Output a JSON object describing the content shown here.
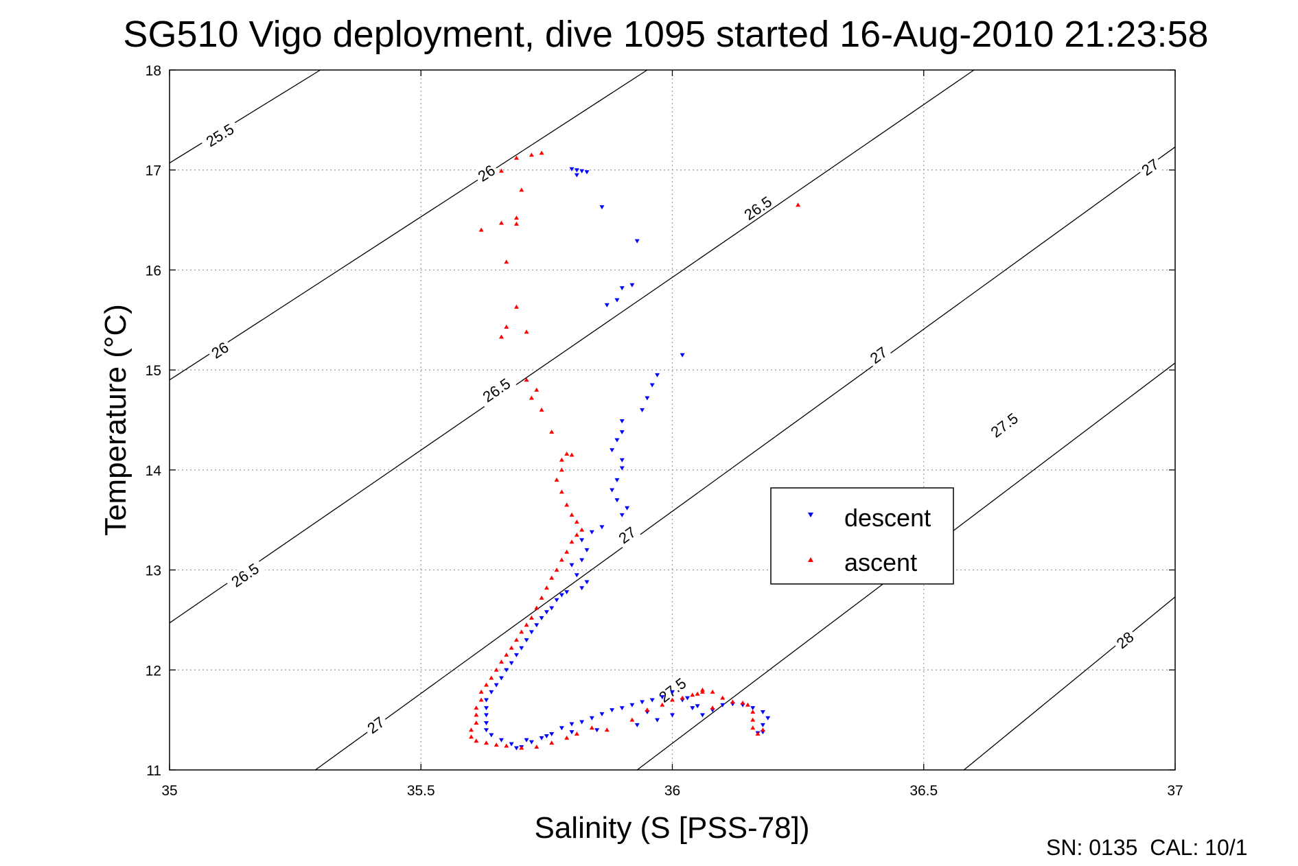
{
  "chart_data": {
    "type": "scatter",
    "title": "SG510 Vigo deployment, dive 1095 started 16-Aug-2010 21:23:58",
    "xlabel": "Salinity (S [PSS-78])",
    "ylabel": "Temperature (°C)",
    "xlim": [
      35,
      37
    ],
    "ylim": [
      11,
      18
    ],
    "xticks": [
      "35",
      "35.5",
      "36",
      "36.5",
      "37"
    ],
    "yticks": [
      "11",
      "12",
      "13",
      "14",
      "15",
      "16",
      "17",
      "18"
    ],
    "grid": true,
    "legend_position": "right-center",
    "footer": "SN: 0135  CAL: 10/1",
    "contours": [
      {
        "label": "25.5",
        "line": [
          [
            35.0,
            17.07
          ],
          [
            35.3,
            18.0
          ]
        ],
        "label_points": [
          [
            35.1,
            17.35
          ]
        ]
      },
      {
        "label": "26",
        "line": [
          [
            35.0,
            14.9
          ],
          [
            35.95,
            18.0
          ]
        ],
        "label_points": [
          [
            35.1,
            15.2
          ],
          [
            35.63,
            16.97
          ]
        ]
      },
      {
        "label": "26.5",
        "line": [
          [
            35.0,
            12.47
          ],
          [
            36.6,
            18.0
          ]
        ],
        "label_points": [
          [
            35.15,
            12.95
          ],
          [
            35.65,
            14.8
          ],
          [
            36.17,
            16.62
          ]
        ]
      },
      {
        "label": "27",
        "line": [
          [
            35.29,
            11.0
          ],
          [
            37.0,
            17.23
          ]
        ],
        "label_points": [
          [
            35.41,
            11.45
          ],
          [
            35.91,
            13.35
          ],
          [
            36.41,
            15.15
          ],
          [
            36.95,
            17.03
          ]
        ]
      },
      {
        "label": "27.5",
        "line": [
          [
            35.93,
            11.0
          ],
          [
            37.0,
            15.07
          ]
        ],
        "label_points": [
          [
            36.0,
            11.8
          ],
          [
            36.66,
            14.45
          ]
        ]
      },
      {
        "label": "28",
        "line": [
          [
            36.58,
            11.0
          ],
          [
            37.0,
            12.73
          ]
        ],
        "label_points": [
          [
            36.9,
            12.3
          ]
        ]
      }
    ],
    "series": [
      {
        "name": "descent",
        "color": "#0000ff",
        "marker": "triangle-down",
        "points": [
          [
            35.8,
            17.01
          ],
          [
            35.81,
            17.0
          ],
          [
            35.82,
            16.99
          ],
          [
            35.83,
            16.98
          ],
          [
            35.81,
            16.95
          ],
          [
            35.86,
            16.63
          ],
          [
            35.93,
            16.29
          ],
          [
            35.92,
            15.85
          ],
          [
            35.9,
            15.82
          ],
          [
            35.89,
            15.7
          ],
          [
            35.87,
            15.65
          ],
          [
            36.02,
            15.15
          ],
          [
            35.97,
            14.95
          ],
          [
            35.96,
            14.85
          ],
          [
            35.95,
            14.72
          ],
          [
            35.94,
            14.6
          ],
          [
            35.9,
            14.49
          ],
          [
            35.9,
            14.38
          ],
          [
            35.89,
            14.3
          ],
          [
            35.88,
            14.2
          ],
          [
            35.9,
            14.1
          ],
          [
            35.9,
            14.02
          ],
          [
            35.89,
            13.9
          ],
          [
            35.88,
            13.8
          ],
          [
            35.89,
            13.7
          ],
          [
            35.91,
            13.62
          ],
          [
            35.9,
            13.55
          ],
          [
            35.86,
            13.43
          ],
          [
            35.84,
            13.38
          ],
          [
            35.82,
            13.3
          ],
          [
            35.83,
            13.2
          ],
          [
            35.82,
            13.1
          ],
          [
            35.8,
            13.05
          ],
          [
            35.81,
            12.95
          ],
          [
            35.83,
            12.88
          ],
          [
            35.82,
            12.82
          ],
          [
            35.79,
            12.78
          ],
          [
            35.78,
            12.75
          ],
          [
            35.77,
            12.7
          ],
          [
            35.76,
            12.62
          ],
          [
            35.75,
            12.58
          ],
          [
            35.74,
            12.52
          ],
          [
            35.73,
            12.45
          ],
          [
            35.72,
            12.38
          ],
          [
            35.71,
            12.3
          ],
          [
            35.7,
            12.22
          ],
          [
            35.69,
            12.15
          ],
          [
            35.68,
            12.07
          ],
          [
            35.67,
            12.0
          ],
          [
            35.66,
            11.92
          ],
          [
            35.65,
            11.85
          ],
          [
            35.64,
            11.78
          ],
          [
            35.63,
            11.7
          ],
          [
            35.63,
            11.62
          ],
          [
            35.63,
            11.55
          ],
          [
            35.63,
            11.47
          ],
          [
            35.63,
            11.4
          ],
          [
            35.64,
            11.35
          ],
          [
            35.66,
            11.3
          ],
          [
            35.68,
            11.26
          ],
          [
            35.69,
            11.22
          ],
          [
            35.7,
            11.23
          ],
          [
            35.72,
            11.28
          ],
          [
            35.74,
            11.32
          ],
          [
            35.76,
            11.36
          ],
          [
            35.78,
            11.42
          ],
          [
            35.8,
            11.46
          ],
          [
            35.82,
            11.48
          ],
          [
            35.84,
            11.52
          ],
          [
            35.86,
            11.56
          ],
          [
            35.88,
            11.6
          ],
          [
            35.9,
            11.62
          ],
          [
            35.92,
            11.65
          ],
          [
            35.94,
            11.68
          ],
          [
            35.96,
            11.7
          ],
          [
            35.98,
            11.73
          ],
          [
            36.0,
            11.78
          ],
          [
            36.02,
            11.7
          ],
          [
            36.04,
            11.62
          ],
          [
            36.06,
            11.55
          ],
          [
            36.08,
            11.6
          ],
          [
            36.1,
            11.65
          ],
          [
            36.12,
            11.66
          ],
          [
            36.14,
            11.65
          ],
          [
            36.16,
            11.62
          ],
          [
            36.18,
            11.58
          ],
          [
            36.19,
            11.52
          ],
          [
            36.18,
            11.45
          ],
          [
            36.18,
            11.38
          ],
          [
            36.17,
            11.37
          ],
          [
            35.95,
            11.58
          ],
          [
            35.97,
            11.5
          ],
          [
            36.03,
            11.72
          ],
          [
            36.05,
            11.64
          ],
          [
            36.0,
            11.55
          ],
          [
            35.93,
            11.45
          ],
          [
            35.85,
            11.4
          ],
          [
            35.8,
            11.38
          ],
          [
            35.75,
            11.34
          ],
          [
            35.71,
            11.3
          ]
        ]
      },
      {
        "name": "ascent",
        "color": "#ff0000",
        "marker": "triangle-up",
        "points": [
          [
            35.74,
            17.17
          ],
          [
            35.72,
            17.15
          ],
          [
            35.69,
            17.12
          ],
          [
            35.66,
            16.99
          ],
          [
            35.7,
            16.8
          ],
          [
            35.69,
            16.52
          ],
          [
            35.69,
            16.46
          ],
          [
            35.66,
            16.47
          ],
          [
            35.62,
            16.4
          ],
          [
            35.67,
            16.08
          ],
          [
            35.69,
            15.63
          ],
          [
            35.67,
            15.43
          ],
          [
            35.71,
            15.38
          ],
          [
            35.66,
            15.33
          ],
          [
            35.71,
            14.9
          ],
          [
            35.73,
            14.8
          ],
          [
            35.72,
            14.72
          ],
          [
            35.74,
            14.6
          ],
          [
            35.76,
            14.38
          ],
          [
            35.79,
            14.16
          ],
          [
            35.8,
            14.15
          ],
          [
            35.78,
            14.1
          ],
          [
            35.78,
            14.0
          ],
          [
            35.77,
            13.9
          ],
          [
            35.78,
            13.78
          ],
          [
            35.79,
            13.65
          ],
          [
            35.8,
            13.55
          ],
          [
            35.81,
            13.48
          ],
          [
            35.82,
            13.4
          ],
          [
            35.81,
            13.35
          ],
          [
            35.8,
            13.28
          ],
          [
            35.79,
            13.18
          ],
          [
            35.78,
            13.1
          ],
          [
            35.77,
            13.0
          ],
          [
            35.76,
            12.92
          ],
          [
            35.75,
            12.82
          ],
          [
            35.74,
            12.72
          ],
          [
            35.73,
            12.62
          ],
          [
            35.72,
            12.52
          ],
          [
            35.71,
            12.45
          ],
          [
            35.7,
            12.38
          ],
          [
            35.69,
            12.3
          ],
          [
            35.68,
            12.22
          ],
          [
            35.67,
            12.15
          ],
          [
            35.66,
            12.08
          ],
          [
            35.65,
            12.0
          ],
          [
            35.64,
            11.92
          ],
          [
            35.63,
            11.85
          ],
          [
            35.62,
            11.78
          ],
          [
            35.62,
            11.7
          ],
          [
            35.61,
            11.62
          ],
          [
            35.61,
            11.55
          ],
          [
            35.61,
            11.47
          ],
          [
            35.6,
            11.4
          ],
          [
            35.6,
            11.33
          ],
          [
            35.61,
            11.29
          ],
          [
            35.63,
            11.27
          ],
          [
            35.65,
            11.25
          ],
          [
            35.67,
            11.24
          ],
          [
            35.7,
            11.22
          ],
          [
            35.73,
            11.23
          ],
          [
            35.76,
            11.27
          ],
          [
            35.79,
            11.32
          ],
          [
            35.81,
            11.36
          ],
          [
            35.84,
            11.42
          ],
          [
            35.87,
            11.4
          ],
          [
            35.92,
            11.5
          ],
          [
            35.95,
            11.6
          ],
          [
            35.98,
            11.65
          ],
          [
            36.0,
            11.7
          ],
          [
            36.02,
            11.72
          ],
          [
            36.04,
            11.75
          ],
          [
            36.06,
            11.78
          ],
          [
            36.08,
            11.78
          ],
          [
            36.1,
            11.72
          ],
          [
            36.12,
            11.68
          ],
          [
            36.14,
            11.67
          ],
          [
            36.15,
            11.65
          ],
          [
            36.16,
            11.58
          ],
          [
            36.16,
            11.5
          ],
          [
            36.16,
            11.42
          ],
          [
            36.17,
            11.36
          ],
          [
            36.18,
            11.4
          ],
          [
            36.06,
            11.8
          ],
          [
            36.05,
            11.76
          ],
          [
            36.08,
            11.62
          ],
          [
            36.25,
            16.65
          ]
        ]
      }
    ]
  }
}
